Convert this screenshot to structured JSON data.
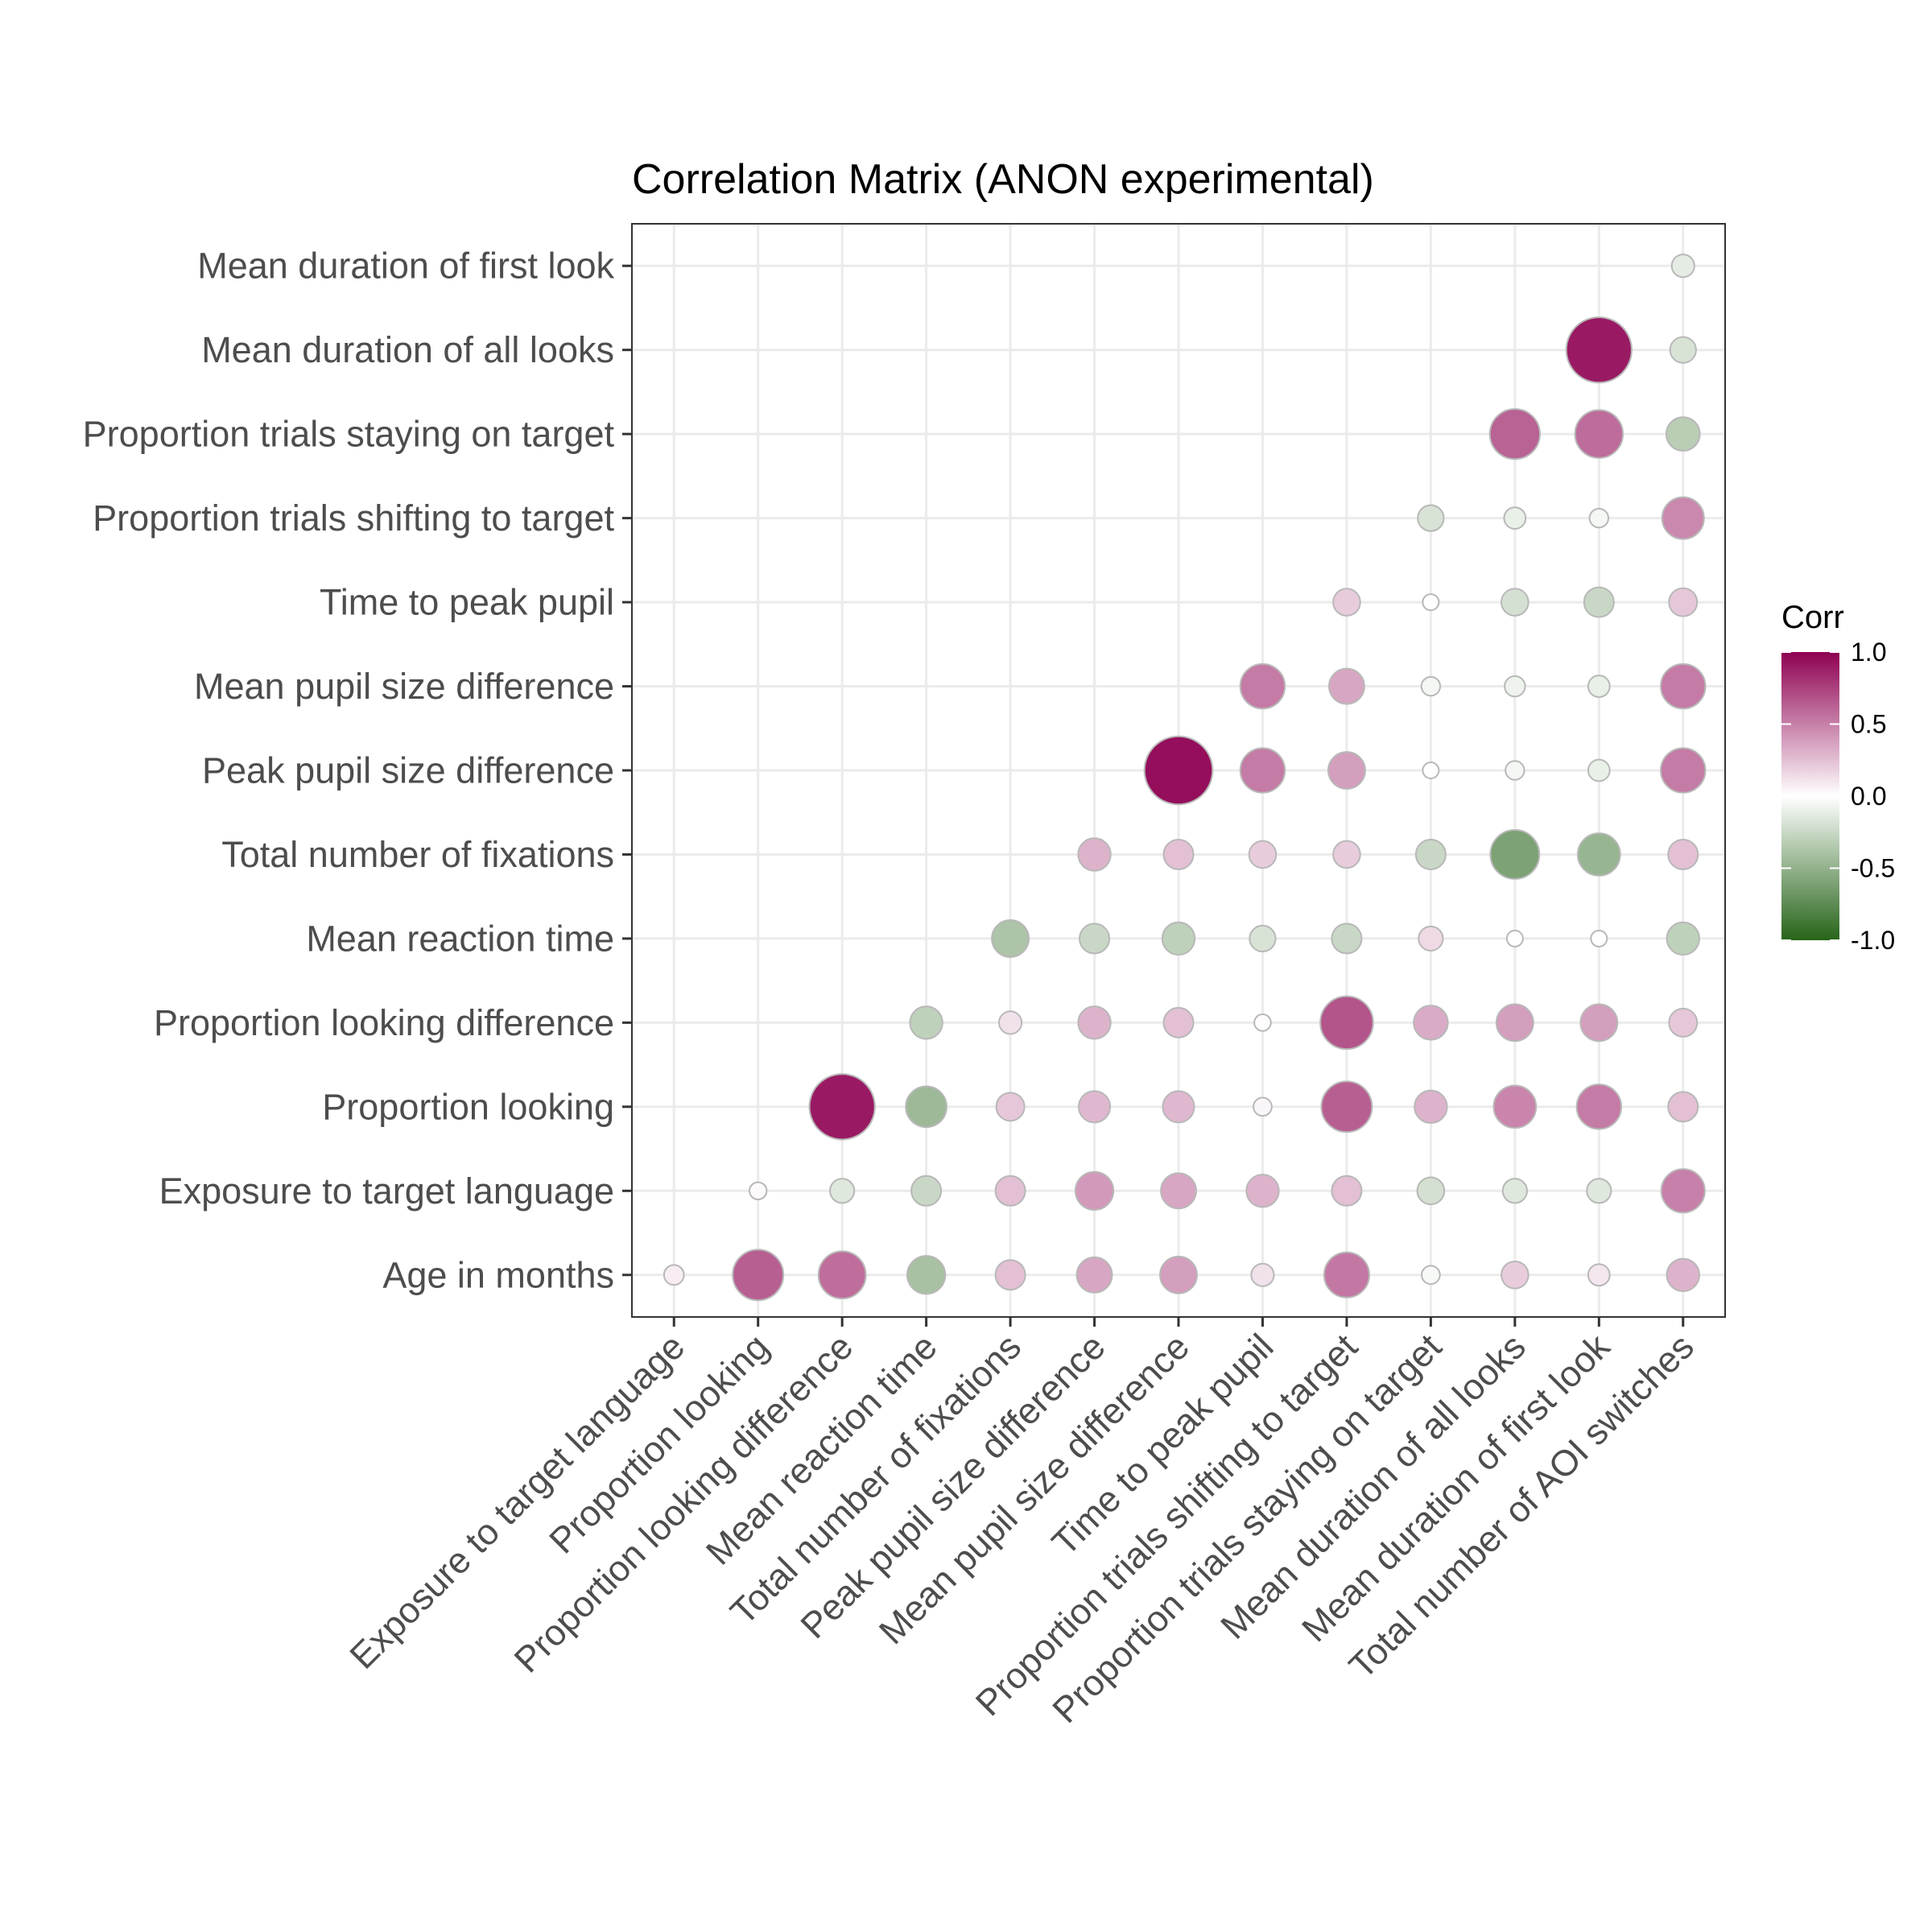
{
  "chart_data": {
    "type": "heatmap",
    "title": "Correlation Matrix (ANON experimental)",
    "xlabel": "",
    "ylabel": "",
    "x_categories": [
      "Exposure to target language",
      "Proportion looking",
      "Proportion looking difference",
      "Mean reaction time",
      "Total number of fixations",
      "Peak pupil size difference",
      "Mean pupil size difference",
      "Time to peak pupil",
      "Proportion trials shifting to target",
      "Proportion trials staying on target",
      "Mean duration of all looks",
      "Mean duration of first look",
      "Total number of AOI switches"
    ],
    "y_categories": [
      "Age in months",
      "Exposure to target language",
      "Proportion looking",
      "Proportion looking difference",
      "Mean reaction time",
      "Total number of fixations",
      "Peak pupil size difference",
      "Mean pupil size difference",
      "Time to peak pupil",
      "Proportion trials shifting to target",
      "Proportion trials staying on target",
      "Mean duration of all looks",
      "Mean duration of first look"
    ],
    "values": [
      [
        0.07,
        0.63,
        0.57,
        -0.4,
        0.25,
        0.35,
        0.38,
        0.12,
        0.53,
        -0.04,
        0.2,
        0.1,
        0.3
      ],
      [
        null,
        0.02,
        -0.15,
        -0.25,
        0.25,
        0.4,
        0.35,
        0.3,
        0.25,
        -0.2,
        -0.15,
        -0.15,
        0.5
      ],
      [
        null,
        null,
        0.9,
        -0.45,
        0.22,
        0.28,
        0.28,
        0.04,
        0.63,
        0.3,
        0.48,
        0.52,
        0.25
      ],
      [
        null,
        null,
        null,
        -0.3,
        0.12,
        0.3,
        0.25,
        0.01,
        0.67,
        0.33,
        0.38,
        0.38,
        0.22
      ],
      [
        null,
        null,
        null,
        null,
        -0.38,
        -0.25,
        -0.3,
        -0.18,
        -0.25,
        0.15,
        0.0,
        0.0,
        -0.3
      ],
      [
        null,
        null,
        null,
        null,
        null,
        0.3,
        0.25,
        0.2,
        0.2,
        -0.25,
        -0.6,
        -0.48,
        0.25
      ],
      [
        null,
        null,
        null,
        null,
        null,
        null,
        0.95,
        0.52,
        0.38,
        0.0,
        -0.05,
        -0.1,
        0.52
      ],
      [
        null,
        null,
        null,
        null,
        null,
        null,
        null,
        0.52,
        0.35,
        -0.05,
        -0.08,
        -0.1,
        0.52
      ],
      [
        null,
        null,
        null,
        null,
        null,
        null,
        null,
        null,
        0.2,
        0.0,
        -0.2,
        -0.25,
        0.22
      ],
      [
        null,
        null,
        null,
        null,
        null,
        null,
        null,
        null,
        null,
        -0.18,
        -0.1,
        -0.05,
        0.47
      ],
      [
        null,
        null,
        null,
        null,
        null,
        null,
        null,
        null,
        null,
        null,
        0.62,
        0.58,
        -0.32
      ],
      [
        null,
        null,
        null,
        null,
        null,
        null,
        null,
        null,
        null,
        null,
        null,
        0.9,
        -0.18
      ],
      [
        null,
        null,
        null,
        null,
        null,
        null,
        null,
        null,
        null,
        null,
        null,
        null,
        -0.12
      ]
    ],
    "size_encodes": "absolute correlation",
    "color_scale": {
      "title": "Corr",
      "range": [
        -1,
        1
      ],
      "ticks": [
        "1.0",
        "0.5",
        "0.0",
        "-0.5",
        "-1.0"
      ],
      "tick_values": [
        1.0,
        0.5,
        0.0,
        -0.5,
        -1.0
      ],
      "low_color": "#276419",
      "mid_color": "#ffffff",
      "high_color": "#8e0152"
    },
    "grid": true,
    "legend_position": "right"
  }
}
